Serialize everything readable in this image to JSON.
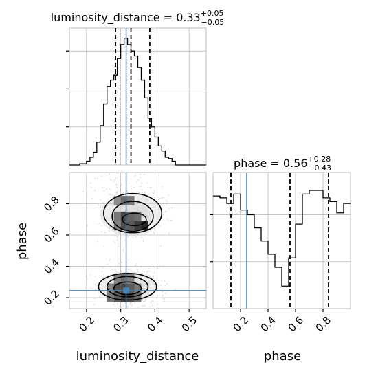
{
  "chart_data": [
    {
      "type": "histogram",
      "panel": "luminosity_distance marginal",
      "title_parts": {
        "name": "luminosity_distance",
        "eq": " = ",
        "value": "0.33",
        "plus": "+0.05",
        "minus": "−0.05"
      },
      "x": {
        "lim": [
          0.15,
          0.55
        ],
        "tick_values": [
          0.2,
          0.3,
          0.4,
          0.5
        ]
      },
      "y": {
        "lim": [
          0,
          1.08
        ],
        "tick_values": [
          0.3,
          0.6,
          0.9
        ]
      },
      "bin_edges": [
        0.15,
        0.16,
        0.17,
        0.18,
        0.19,
        0.2,
        0.21,
        0.22,
        0.23,
        0.24,
        0.25,
        0.26,
        0.27,
        0.28,
        0.29,
        0.3,
        0.31,
        0.32,
        0.33,
        0.34,
        0.35,
        0.36,
        0.37,
        0.38,
        0.39,
        0.4,
        0.41,
        0.42,
        0.43,
        0.44,
        0.45,
        0.46,
        0.47,
        0.48,
        0.49,
        0.5,
        0.51,
        0.52,
        0.53,
        0.54,
        0.55
      ],
      "counts": [
        0,
        0,
        0,
        0.01,
        0.01,
        0.03,
        0.06,
        0.1,
        0.18,
        0.31,
        0.48,
        0.62,
        0.67,
        0.71,
        0.84,
        0.95,
        1.0,
        0.95,
        0.9,
        0.86,
        0.77,
        0.67,
        0.53,
        0.37,
        0.3,
        0.22,
        0.15,
        0.11,
        0.06,
        0.05,
        0.03,
        0,
        0,
        0,
        0,
        0,
        0,
        0,
        0,
        0
      ],
      "quantile_lines": [
        0.285,
        0.33,
        0.385
      ],
      "truth_line": 0.316
    },
    {
      "type": "histogram",
      "panel": "phase marginal",
      "title_parts": {
        "name": "phase",
        "eq": " = ",
        "value": "0.56",
        "plus": "+0.28",
        "minus": "−0.43"
      },
      "x": {
        "lim": [
          0.0,
          1.0
        ],
        "tick_values": [
          0.2,
          0.4,
          0.6,
          0.8
        ]
      },
      "y": {
        "lim": [
          0,
          1.45
        ],
        "tick_values": [
          0.5,
          1.0
        ]
      },
      "bin_edges": [
        0.0,
        0.05,
        0.1,
        0.15,
        0.2,
        0.25,
        0.3,
        0.35,
        0.4,
        0.45,
        0.5,
        0.55,
        0.6,
        0.65,
        0.7,
        0.75,
        0.8,
        0.85,
        0.9,
        0.95,
        1.0
      ],
      "counts": [
        1.2,
        1.18,
        1.12,
        1.22,
        1.05,
        1.0,
        0.86,
        0.72,
        0.58,
        0.44,
        0.24,
        0.54,
        0.9,
        1.22,
        1.26,
        1.26,
        1.18,
        1.14,
        1.02,
        1.12
      ],
      "quantile_lines": [
        0.13,
        0.56,
        0.84
      ],
      "truth_line": 0.245
    },
    {
      "type": "2d-density",
      "panel": "joint luminosity_distance vs phase",
      "x": {
        "label": "luminosity_distance",
        "lim": [
          0.15,
          0.55
        ],
        "tick_labels": [
          "0.2",
          "0.3",
          "0.4",
          "0.5"
        ],
        "tick_values": [
          0.2,
          0.3,
          0.4,
          0.5
        ]
      },
      "y": {
        "label": "phase",
        "lim": [
          0.13,
          1.0
        ],
        "tick_labels": [
          "0.2",
          "0.4",
          "0.6",
          "0.8"
        ],
        "tick_values": [
          0.2,
          0.4,
          0.6,
          0.8
        ]
      },
      "truth_point": {
        "x": 0.316,
        "y": 0.245
      },
      "density_cells": [
        {
          "x": 0.27,
          "y": 0.2,
          "w": 0.55
        },
        {
          "x": 0.29,
          "y": 0.2,
          "w": 0.7
        },
        {
          "x": 0.31,
          "y": 0.2,
          "w": 0.85
        },
        {
          "x": 0.33,
          "y": 0.2,
          "w": 0.75
        },
        {
          "x": 0.35,
          "y": 0.2,
          "w": 0.6
        },
        {
          "x": 0.27,
          "y": 0.26,
          "w": 0.5
        },
        {
          "x": 0.29,
          "y": 0.26,
          "w": 0.75
        },
        {
          "x": 0.31,
          "y": 0.26,
          "w": 0.8
        },
        {
          "x": 0.33,
          "y": 0.26,
          "w": 0.7
        },
        {
          "x": 0.35,
          "y": 0.26,
          "w": 0.55
        },
        {
          "x": 0.29,
          "y": 0.32,
          "w": 0.5
        },
        {
          "x": 0.31,
          "y": 0.32,
          "w": 0.6
        },
        {
          "x": 0.33,
          "y": 0.32,
          "w": 0.5
        },
        {
          "x": 0.29,
          "y": 0.66,
          "w": 0.5
        },
        {
          "x": 0.31,
          "y": 0.66,
          "w": 0.75
        },
        {
          "x": 0.33,
          "y": 0.66,
          "w": 0.7
        },
        {
          "x": 0.35,
          "y": 0.66,
          "w": 0.85
        },
        {
          "x": 0.37,
          "y": 0.66,
          "w": 0.95
        },
        {
          "x": 0.29,
          "y": 0.72,
          "w": 0.55
        },
        {
          "x": 0.31,
          "y": 0.72,
          "w": 0.8
        },
        {
          "x": 0.33,
          "y": 0.72,
          "w": 0.65
        },
        {
          "x": 0.35,
          "y": 0.72,
          "w": 0.6
        },
        {
          "x": 0.29,
          "y": 0.82,
          "w": 0.45
        },
        {
          "x": 0.31,
          "y": 0.82,
          "w": 0.6
        },
        {
          "x": 0.33,
          "y": 0.82,
          "w": 0.55
        }
      ]
    }
  ]
}
